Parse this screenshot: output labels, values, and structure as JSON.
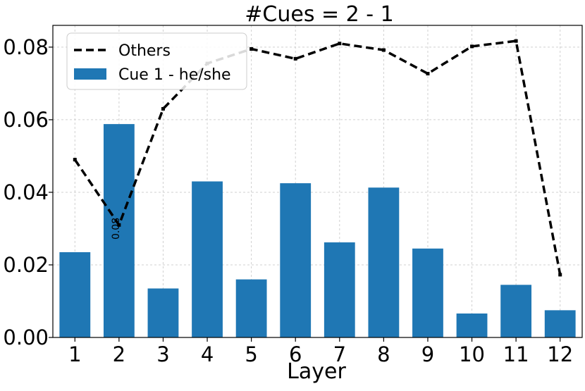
{
  "chart_data": {
    "type": "bar",
    "title": "#Cues = 2 - 1",
    "xlabel": "Layer",
    "ylabel": "",
    "categories": [
      "1",
      "2",
      "3",
      "4",
      "5",
      "6",
      "7",
      "8",
      "9",
      "10",
      "11",
      "12"
    ],
    "ylim": [
      0,
      0.086
    ],
    "yticks": [
      "0.00",
      "0.02",
      "0.04",
      "0.06",
      "0.08"
    ],
    "grid": true,
    "legend_position": "top-left",
    "series": [
      {
        "name": "Cue 1 - he/she",
        "kind": "bar",
        "color": "#1f77b4",
        "values": [
          0.0235,
          0.0588,
          0.0135,
          0.043,
          0.016,
          0.0425,
          0.0262,
          0.0413,
          0.0245,
          0.0066,
          0.0145,
          0.0075
        ]
      },
      {
        "name": "Others",
        "kind": "line",
        "style": "dashed",
        "color": "#000000",
        "values": [
          0.049,
          0.031,
          0.063,
          0.0755,
          0.0795,
          0.0768,
          0.081,
          0.0792,
          0.0727,
          0.0802,
          0.0817,
          0.0173
        ]
      }
    ],
    "annotations": [
      {
        "text": "0.08",
        "category": "2",
        "y": 0.03,
        "rotation": -90
      }
    ]
  }
}
